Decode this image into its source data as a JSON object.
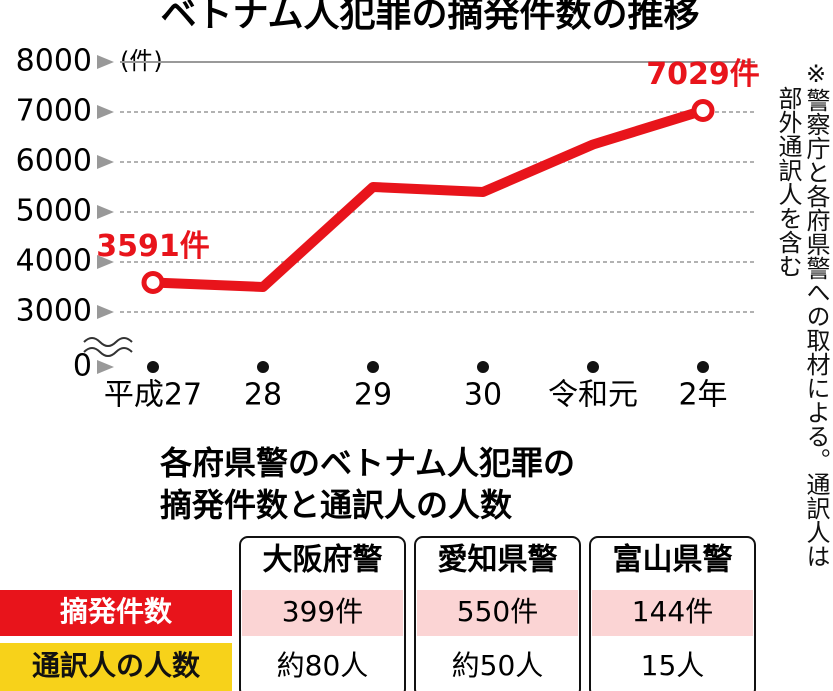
{
  "chart_data": {
    "type": "line",
    "title": "ベトナム人犯罪の摘発件数の推移",
    "y_unit": "(件)",
    "categories": [
      "平成27",
      "28",
      "29",
      "30",
      "令和元",
      "2年"
    ],
    "series": [
      {
        "name": "摘発件数",
        "color": "#e8141b",
        "values": [
          3591,
          3500,
          5500,
          5400,
          6350,
          7029
        ],
        "value_labels": [
          "3591件",
          null,
          null,
          null,
          null,
          "7029件"
        ]
      }
    ],
    "ylim": [
      0,
      8000
    ],
    "axis_break": [
      0,
      3000
    ],
    "yticks": [
      0,
      3000,
      4000,
      5000,
      6000,
      7000,
      8000
    ],
    "grid": true
  },
  "note": {
    "lines": [
      "※警察庁と各府県警への取材による。通訳人は",
      "部外通訳人を含む"
    ]
  },
  "table": {
    "title_lines": [
      "各府県警のベトナム人犯罪の",
      "摘発件数と通訳人の人数"
    ],
    "columns": [
      "大阪府警",
      "愛知県警",
      "富山県警"
    ],
    "rows": [
      [
        "摘発件数",
        "399件",
        "550件",
        "144件"
      ],
      [
        "通訳人の人数",
        "約80人",
        "約50人",
        "15人"
      ]
    ]
  }
}
